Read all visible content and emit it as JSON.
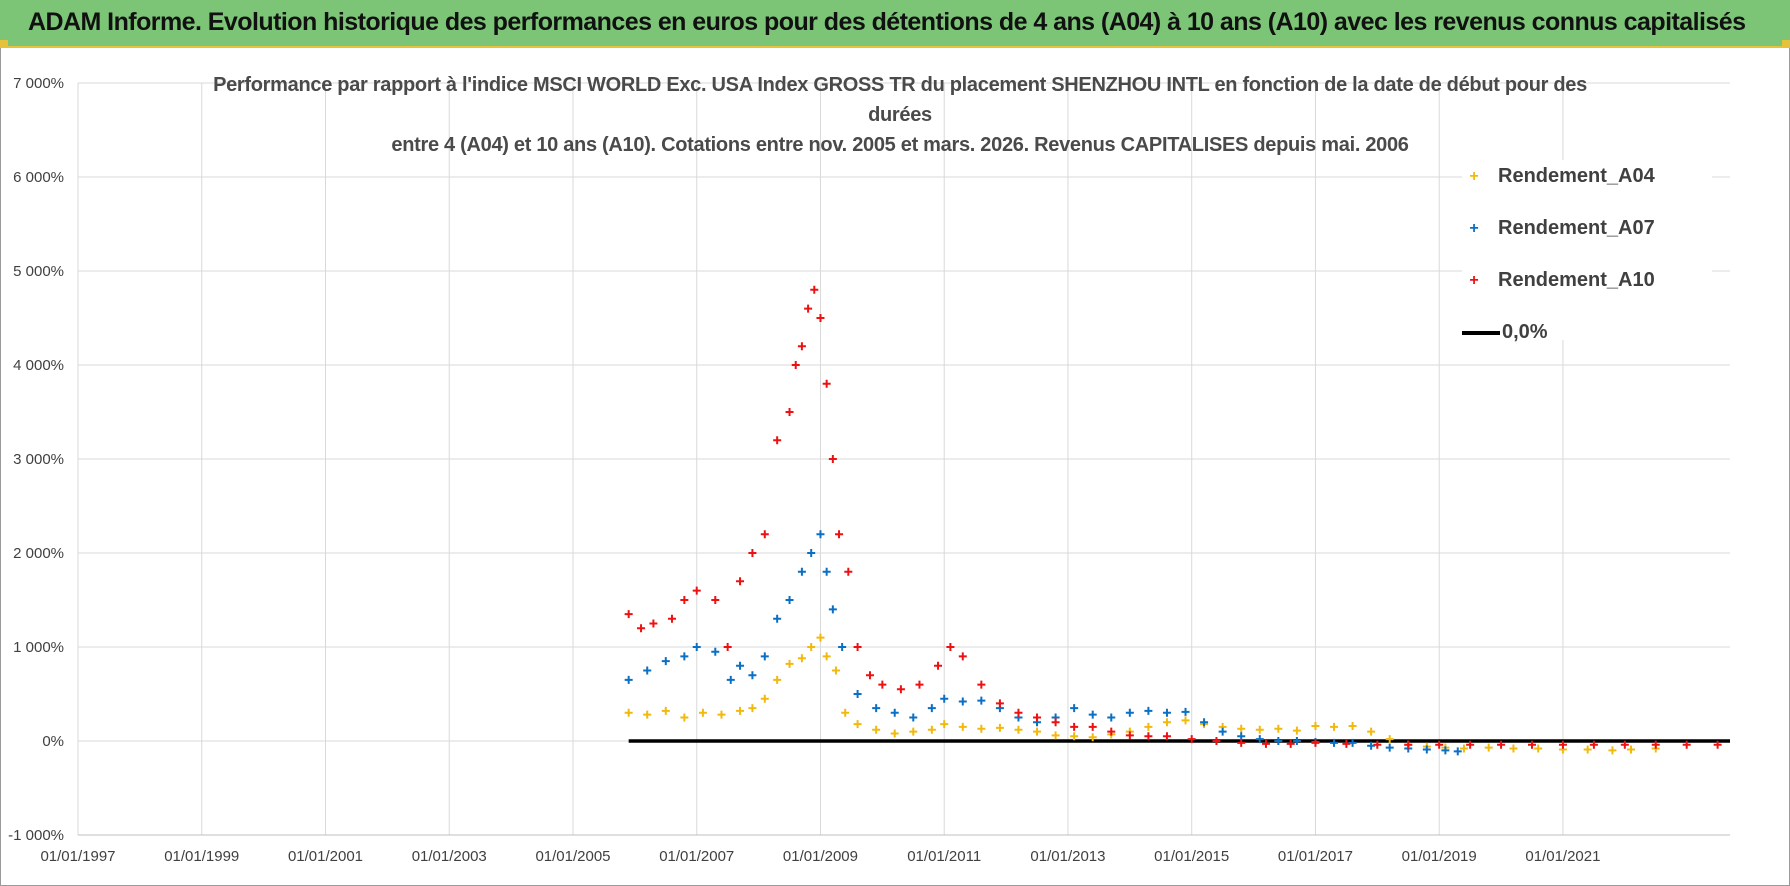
{
  "header": {
    "title": "ADAM Informe. Evolution historique des performances en euros pour des détentions de 4 ans (A04) à 10 ans (A10) avec les revenus connus capitalisés"
  },
  "colors": {
    "header_bg": "#7cc576",
    "accent": "#e6c23a",
    "a04": "#f2b90d",
    "a07": "#0b6fc4",
    "a10": "#ee1111",
    "zero": "#000000",
    "grid": "#d9d9d9"
  },
  "chart_data": {
    "type": "scatter",
    "title_lines": [
      "Performance par rapport à l'indice MSCI WORLD Exc. USA Index GROSS TR  du placement SHENZHOU INTL en fonction de la date de début pour des",
      "durées",
      "entre 4 (A04) et 10 ans (A10). Cotations entre nov. 2005 et mars. 2026. Revenus CAPITALISES depuis mai. 2006"
    ],
    "xlabel": "",
    "ylabel": "",
    "x_range": [
      1997.0,
      2023.7
    ],
    "ylim": [
      -1000,
      7000
    ],
    "y_ticks": [
      -1000,
      0,
      1000,
      2000,
      3000,
      4000,
      5000,
      6000,
      7000
    ],
    "y_tick_labels": [
      "-1 000%",
      "0%",
      "1 000%",
      "2 000%",
      "3 000%",
      "4 000%",
      "5 000%",
      "6 000%",
      "7 000%"
    ],
    "x_ticks": [
      1997,
      1999,
      2001,
      2003,
      2005,
      2007,
      2009,
      2011,
      2013,
      2015,
      2017,
      2019,
      2021
    ],
    "x_tick_labels": [
      "01/01/1997",
      "01/01/1999",
      "01/01/2001",
      "01/01/2003",
      "01/01/2005",
      "01/01/2007",
      "01/01/2009",
      "01/01/2011",
      "01/01/2013",
      "01/01/2015",
      "01/01/2017",
      "01/01/2019",
      "01/01/2021"
    ],
    "grid": true,
    "legend_position": "top-right",
    "series": [
      {
        "name": "Rendement_A04",
        "color": "#f2b90d",
        "marker": "+",
        "x": [
          2005.9,
          2006.2,
          2006.5,
          2006.8,
          2007.1,
          2007.4,
          2007.7,
          2007.9,
          2008.1,
          2008.3,
          2008.5,
          2008.7,
          2008.85,
          2009.0,
          2009.1,
          2009.25,
          2009.4,
          2009.6,
          2009.9,
          2010.2,
          2010.5,
          2010.8,
          2011.0,
          2011.3,
          2011.6,
          2011.9,
          2012.2,
          2012.5,
          2012.8,
          2013.1,
          2013.4,
          2013.7,
          2014.0,
          2014.3,
          2014.6,
          2014.9,
          2015.2,
          2015.5,
          2015.8,
          2016.1,
          2016.4,
          2016.7,
          2017.0,
          2017.3,
          2017.6,
          2017.9,
          2018.2,
          2018.5,
          2018.8,
          2019.1,
          2019.4,
          2019.8,
          2020.2,
          2020.6,
          2021.0,
          2021.4,
          2021.8,
          2022.1,
          2022.5
        ],
        "values": [
          300,
          280,
          320,
          250,
          300,
          280,
          320,
          350,
          450,
          650,
          820,
          880,
          1000,
          1100,
          900,
          750,
          300,
          180,
          120,
          80,
          100,
          120,
          180,
          150,
          130,
          140,
          120,
          100,
          60,
          50,
          40,
          70,
          100,
          150,
          200,
          220,
          180,
          150,
          130,
          120,
          130,
          110,
          160,
          150,
          160,
          100,
          20,
          -40,
          -60,
          -70,
          -80,
          -70,
          -80,
          -80,
          -90,
          -90,
          -100,
          -90,
          -80
        ]
      },
      {
        "name": "Rendement_A07",
        "color": "#0b6fc4",
        "marker": "+",
        "x": [
          2005.9,
          2006.2,
          2006.5,
          2006.8,
          2007.0,
          2007.3,
          2007.55,
          2007.7,
          2007.9,
          2008.1,
          2008.3,
          2008.5,
          2008.7,
          2008.85,
          2009.0,
          2009.1,
          2009.2,
          2009.35,
          2009.6,
          2009.9,
          2010.2,
          2010.5,
          2010.8,
          2011.0,
          2011.3,
          2011.6,
          2011.9,
          2012.2,
          2012.5,
          2012.8,
          2013.1,
          2013.4,
          2013.7,
          2014.0,
          2014.3,
          2014.6,
          2014.9,
          2015.2,
          2015.5,
          2015.8,
          2016.1,
          2016.4,
          2016.7,
          2017.0,
          2017.3,
          2017.6,
          2017.9,
          2018.2,
          2018.5,
          2018.8,
          2019.1,
          2019.3
        ],
        "values": [
          650,
          750,
          850,
          900,
          1000,
          950,
          650,
          800,
          700,
          900,
          1300,
          1500,
          1800,
          2000,
          2200,
          1800,
          1400,
          1000,
          500,
          350,
          300,
          250,
          350,
          450,
          420,
          430,
          350,
          250,
          200,
          250,
          350,
          280,
          250,
          300,
          320,
          300,
          310,
          200,
          100,
          50,
          20,
          0,
          0,
          -10,
          -20,
          -20,
          -50,
          -70,
          -80,
          -90,
          -100,
          -110
        ]
      },
      {
        "name": "Rendement_A10",
        "color": "#ee1111",
        "marker": "+",
        "x": [
          2005.9,
          2006.1,
          2006.3,
          2006.6,
          2006.8,
          2007.0,
          2007.3,
          2007.5,
          2007.7,
          2007.9,
          2008.1,
          2008.3,
          2008.5,
          2008.6,
          2008.7,
          2008.8,
          2008.9,
          2009.0,
          2009.1,
          2009.2,
          2009.3,
          2009.45,
          2009.6,
          2009.8,
          2010.0,
          2010.3,
          2010.6,
          2010.9,
          2011.1,
          2011.3,
          2011.6,
          2011.9,
          2012.2,
          2012.5,
          2012.8,
          2013.1,
          2013.4,
          2013.7,
          2014.0,
          2014.3,
          2014.6,
          2015.0,
          2015.4,
          2015.8,
          2016.2,
          2016.6,
          2017.0,
          2017.5,
          2018.0,
          2018.5,
          2019.0,
          2019.5,
          2020.0,
          2020.5,
          2021.0,
          2021.5,
          2022.0,
          2022.5,
          2023.0,
          2023.5
        ],
        "values": [
          1350,
          1200,
          1250,
          1300,
          1500,
          1600,
          1500,
          1000,
          1700,
          2000,
          2200,
          3200,
          3500,
          4000,
          4200,
          4600,
          4800,
          4500,
          3800,
          3000,
          2200,
          1800,
          1000,
          700,
          600,
          550,
          600,
          800,
          1000,
          900,
          600,
          400,
          300,
          250,
          200,
          150,
          150,
          100,
          60,
          50,
          50,
          20,
          0,
          -20,
          -30,
          -30,
          -20,
          -30,
          -40,
          -40,
          -40,
          -40,
          -40,
          -40,
          -40,
          -40,
          -40,
          -40,
          -40,
          -40
        ]
      }
    ],
    "reference_line": {
      "name": "0,0%",
      "value": 0,
      "x_start": 2005.9,
      "x_end": 2023.7,
      "color": "#000000"
    }
  }
}
